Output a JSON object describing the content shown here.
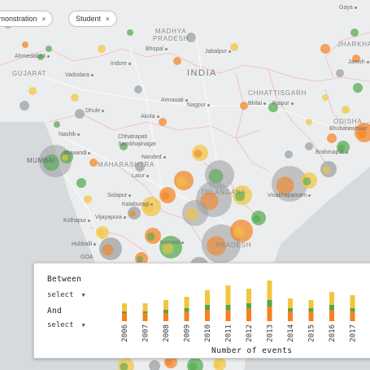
{
  "filters": {
    "chips": [
      {
        "label": "Demonstration",
        "remove": "×"
      },
      {
        "label": "Student",
        "remove": "×"
      }
    ]
  },
  "map_labels": {
    "country": "INDIA",
    "regions": [
      "MADHYA\nPRADESH",
      "GUJARAT",
      "MAHARASHTRA",
      "CHHATTISGARH",
      "ODISHA",
      "JHARKHA",
      "TELANGANA",
      "PRADESH"
    ],
    "cities": [
      "Gaya",
      "Ahmedabad",
      "Bhopal",
      "Jabalpur",
      "Indore",
      "Vadodara",
      "Dhule",
      "Amravati",
      "Nagpur",
      "Akola",
      "Bhilai",
      "Raipur",
      "Nashik",
      "Chhatrapati\nSambhajinagar",
      "Bhiwandi",
      "MUMBAI",
      "Nanded",
      "Latur",
      "Solapur",
      "Kalaburagi",
      "Kolhapur",
      "Vijayapura",
      "Hubballi",
      "Kurnool",
      "Brahmapur",
      "Visakhapatnam",
      "Bhubaneshwar",
      "Jamshedp",
      "GOA",
      "Jamsh"
    ]
  },
  "panel": {
    "between_label": "Between",
    "and_label": "And",
    "between_select": "select",
    "and_select": "select",
    "caret": "▼"
  },
  "chart_data": {
    "type": "bar",
    "stacked": true,
    "categories": [
      "2006",
      "2007",
      "2008",
      "2009",
      "2010",
      "2011",
      "2012",
      "2013",
      "2014",
      "2015",
      "2016",
      "2017"
    ],
    "series": [
      {
        "values": [
          5,
          5,
          5,
          6,
          7,
          7,
          8,
          9,
          6,
          6,
          7,
          6
        ],
        "color": "#f5821f"
      },
      {
        "values": [
          1,
          1,
          2,
          2,
          3,
          3,
          3,
          4,
          2,
          2,
          3,
          2
        ],
        "color": "#4fa84a"
      },
      {
        "values": [
          5,
          5,
          6,
          7,
          9,
          12,
          9,
          12,
          6,
          5,
          8,
          8
        ],
        "color": "#f2c53d"
      }
    ],
    "xlabel": "Number of events",
    "ylabel": ""
  },
  "colors": {
    "orange": "#f5821f",
    "green": "#4fa84a",
    "yellow": "#f2c53d",
    "bubble_gray": "#9a9da0"
  }
}
